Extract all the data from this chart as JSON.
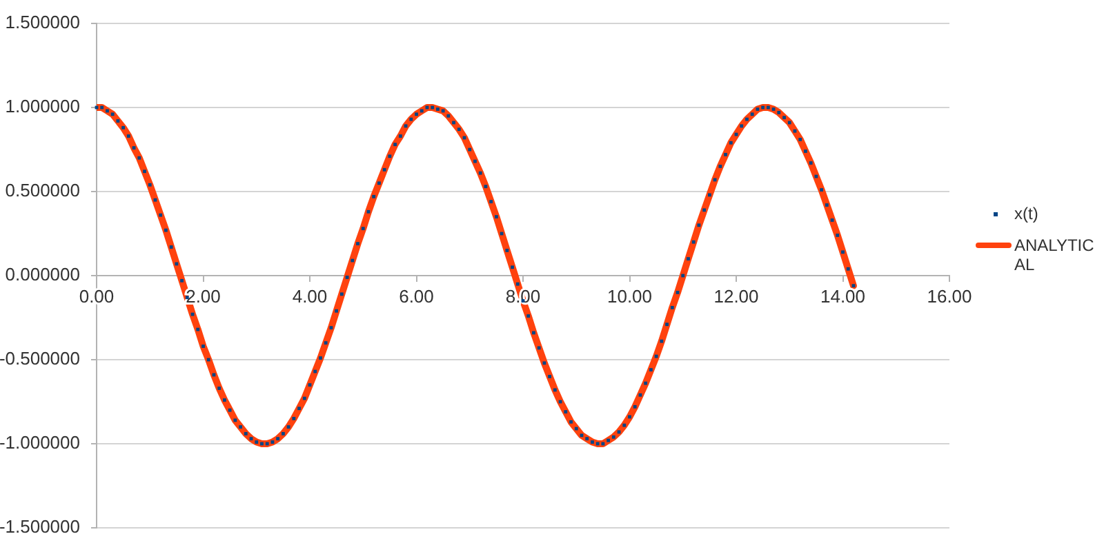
{
  "chart_data": {
    "type": "scatter",
    "x": [
      0,
      0.1,
      0.2,
      0.3,
      0.4,
      0.5,
      0.6,
      0.7,
      0.8,
      0.9,
      1,
      1.1,
      1.2,
      1.3,
      1.4,
      1.5,
      1.6,
      1.7,
      1.8,
      1.9,
      2,
      2.1,
      2.2,
      2.3,
      2.4,
      2.5,
      2.6,
      2.7,
      2.8,
      2.9,
      3,
      3.1,
      3.2,
      3.3,
      3.4,
      3.5,
      3.6,
      3.7,
      3.8,
      3.9,
      4,
      4.1,
      4.2,
      4.3,
      4.4,
      4.5,
      4.6,
      4.7,
      4.8,
      4.9,
      5,
      5.1,
      5.2,
      5.3,
      5.4,
      5.5,
      5.6,
      5.7,
      5.8,
      5.9,
      6,
      6.1,
      6.2,
      6.3,
      6.4,
      6.5,
      6.6,
      6.7,
      6.8,
      6.9,
      7,
      7.1,
      7.2,
      7.3,
      7.4,
      7.5,
      7.6,
      7.7,
      7.8,
      7.9,
      8,
      8.1,
      8.2,
      8.3,
      8.4,
      8.5,
      8.6,
      8.7,
      8.8,
      8.9,
      9,
      9.1,
      9.2,
      9.3,
      9.4,
      9.5,
      9.6,
      9.7,
      9.8,
      9.9,
      10,
      10.1,
      10.2,
      10.3,
      10.4,
      10.5,
      10.6,
      10.7,
      10.8,
      10.9,
      11,
      11.1,
      11.2,
      11.3,
      11.4,
      11.5,
      11.6,
      11.7,
      11.8,
      11.9,
      12,
      12.1,
      12.2,
      12.3,
      12.4,
      12.5,
      12.6,
      12.7,
      12.8,
      12.9,
      13,
      13.1,
      13.2,
      13.3,
      13.4,
      13.5,
      13.6,
      13.7,
      13.8,
      13.9,
      14,
      14.1,
      14.2
    ],
    "series": [
      {
        "name": "x(t)",
        "type": "scatter",
        "marker": "square",
        "color": "#004586",
        "values": [
          1,
          1,
          0.98,
          0.96,
          0.92,
          0.88,
          0.83,
          0.76,
          0.7,
          0.62,
          0.54,
          0.45,
          0.36,
          0.27,
          0.17,
          0.07,
          -0.03,
          -0.13,
          -0.23,
          -0.32,
          -0.42,
          -0.5,
          -0.59,
          -0.67,
          -0.74,
          -0.8,
          -0.86,
          -0.9,
          -0.94,
          -0.97,
          -0.99,
          -1,
          -1,
          -0.99,
          -0.97,
          -0.94,
          -0.9,
          -0.85,
          -0.79,
          -0.73,
          -0.65,
          -0.57,
          -0.49,
          -0.4,
          -0.31,
          -0.21,
          -0.11,
          -0.01,
          0.09,
          0.19,
          0.28,
          0.38,
          0.47,
          0.55,
          0.63,
          0.71,
          0.78,
          0.83,
          0.89,
          0.93,
          0.96,
          0.98,
          1,
          1,
          0.99,
          0.98,
          0.95,
          0.91,
          0.87,
          0.82,
          0.75,
          0.68,
          0.61,
          0.53,
          0.44,
          0.35,
          0.25,
          0.15,
          0.05,
          -0.05,
          -0.15,
          -0.24,
          -0.34,
          -0.43,
          -0.52,
          -0.6,
          -0.68,
          -0.75,
          -0.81,
          -0.87,
          -0.91,
          -0.95,
          -0.97,
          -0.99,
          -1,
          -1,
          -0.98,
          -0.96,
          -0.93,
          -0.89,
          -0.84,
          -0.78,
          -0.71,
          -0.64,
          -0.56,
          -0.48,
          -0.39,
          -0.29,
          -0.19,
          -0.1,
          0,
          0.1,
          0.2,
          0.3,
          0.39,
          0.48,
          0.57,
          0.65,
          0.72,
          0.79,
          0.84,
          0.89,
          0.93,
          0.96,
          0.99,
          1,
          1,
          0.99,
          0.97,
          0.94,
          0.91,
          0.86,
          0.81,
          0.74,
          0.67,
          0.59,
          0.51,
          0.42,
          0.33,
          0.24,
          0.14,
          0.04,
          -0.06
        ]
      },
      {
        "name": "ANALYTICAL",
        "type": "line",
        "marker": "none",
        "color": "#ff420e",
        "values": [
          1,
          1,
          0.98,
          0.96,
          0.92,
          0.88,
          0.83,
          0.76,
          0.7,
          0.62,
          0.54,
          0.45,
          0.36,
          0.27,
          0.17,
          0.07,
          -0.03,
          -0.13,
          -0.23,
          -0.32,
          -0.42,
          -0.5,
          -0.59,
          -0.67,
          -0.74,
          -0.8,
          -0.86,
          -0.9,
          -0.94,
          -0.97,
          -0.99,
          -1,
          -1,
          -0.99,
          -0.97,
          -0.94,
          -0.9,
          -0.85,
          -0.79,
          -0.73,
          -0.65,
          -0.57,
          -0.49,
          -0.4,
          -0.31,
          -0.21,
          -0.11,
          -0.01,
          0.09,
          0.19,
          0.28,
          0.38,
          0.47,
          0.55,
          0.63,
          0.71,
          0.78,
          0.83,
          0.89,
          0.93,
          0.96,
          0.98,
          1,
          1,
          0.99,
          0.98,
          0.95,
          0.91,
          0.87,
          0.82,
          0.75,
          0.68,
          0.61,
          0.53,
          0.44,
          0.35,
          0.25,
          0.15,
          0.05,
          -0.05,
          -0.15,
          -0.24,
          -0.34,
          -0.43,
          -0.52,
          -0.6,
          -0.68,
          -0.75,
          -0.81,
          -0.87,
          -0.91,
          -0.95,
          -0.97,
          -0.99,
          -1,
          -1,
          -0.98,
          -0.96,
          -0.93,
          -0.89,
          -0.84,
          -0.78,
          -0.71,
          -0.64,
          -0.56,
          -0.48,
          -0.39,
          -0.29,
          -0.19,
          -0.1,
          0,
          0.1,
          0.2,
          0.3,
          0.39,
          0.48,
          0.57,
          0.65,
          0.72,
          0.79,
          0.84,
          0.89,
          0.93,
          0.96,
          0.99,
          1,
          1,
          0.99,
          0.97,
          0.94,
          0.91,
          0.86,
          0.81,
          0.74,
          0.67,
          0.59,
          0.51,
          0.42,
          0.33,
          0.24,
          0.14,
          0.04,
          -0.06
        ]
      }
    ],
    "xlim": [
      0,
      16
    ],
    "xticks": [
      {
        "value": 0,
        "label": "0.00"
      },
      {
        "value": 2,
        "label": "2.00"
      },
      {
        "value": 4,
        "label": "4.00"
      },
      {
        "value": 6,
        "label": "6.00"
      },
      {
        "value": 8,
        "label": "8.00"
      },
      {
        "value": 10,
        "label": "10.00"
      },
      {
        "value": 12,
        "label": "12.00"
      },
      {
        "value": 14,
        "label": "14.00"
      },
      {
        "value": 16,
        "label": "16.00"
      }
    ],
    "ylim": [
      -1.5,
      1.5
    ],
    "yticks": [
      {
        "value": -1.5,
        "label": "-1.500000"
      },
      {
        "value": -1,
        "label": "-1.000000"
      },
      {
        "value": -0.5,
        "label": "-0.500000"
      },
      {
        "value": 0,
        "label": "0.000000"
      },
      {
        "value": 0.5,
        "label": "0.500000"
      },
      {
        "value": 1,
        "label": "1.000000"
      },
      {
        "value": 1.5,
        "label": "1.500000"
      }
    ],
    "grid": "y",
    "legend": "right"
  }
}
